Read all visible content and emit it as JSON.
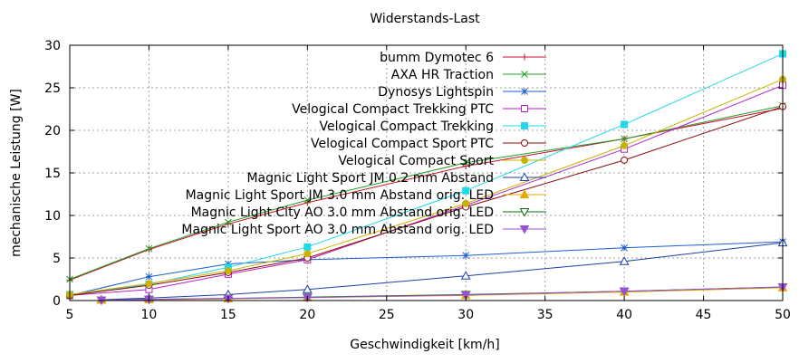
{
  "chart_data": {
    "type": "line",
    "title": "Widerstands-Last",
    "xlabel": "Geschwindigkeit [km/h]",
    "ylabel": "mechanische Leistung [W]",
    "xlim": [
      5,
      50
    ],
    "ylim": [
      0,
      30
    ],
    "xticks": [
      5,
      10,
      15,
      20,
      25,
      30,
      35,
      40,
      45,
      50
    ],
    "yticks": [
      0,
      5,
      10,
      15,
      20,
      25,
      30
    ],
    "grid": true,
    "legend_position": "top-right",
    "series": [
      {
        "name": "bumm Dymotec 6",
        "color": "#c8102e",
        "marker": "plus",
        "x": [
          5,
          10,
          15,
          20,
          30,
          40,
          50
        ],
        "y": [
          2.4,
          6.0,
          9.0,
          11.5,
          15.8,
          19.0,
          22.6
        ]
      },
      {
        "name": "AXA HR Traction",
        "color": "#21a021",
        "marker": "cross",
        "x": [
          5,
          10,
          15,
          20,
          30,
          40,
          50
        ],
        "y": [
          2.5,
          6.1,
          9.2,
          11.8,
          16.2,
          19.0,
          22.9
        ]
      },
      {
        "name": "Dynosys Lightspin",
        "color": "#1a5fd1",
        "marker": "star",
        "x": [
          5,
          10,
          15,
          20,
          30,
          40,
          50
        ],
        "y": [
          0.6,
          2.8,
          4.3,
          4.8,
          5.3,
          6.2,
          6.9
        ]
      },
      {
        "name": "Velogical Compact Trekking PTC",
        "color": "#b422c7",
        "marker": "square-open",
        "x": [
          5,
          10,
          15,
          20,
          30,
          40,
          50
        ],
        "y": [
          0.6,
          1.3,
          3.1,
          4.8,
          11.2,
          17.8,
          25.3
        ]
      },
      {
        "name": "Velogical Compact Trekking",
        "color": "#1fd9e8",
        "marker": "square-filled",
        "x": [
          5,
          10,
          15,
          20,
          30,
          40,
          50
        ],
        "y": [
          0.7,
          1.9,
          3.9,
          6.3,
          12.9,
          20.7,
          29.0
        ]
      },
      {
        "name": "Velogical Compact Sport PTC",
        "color": "#8b0a0a",
        "marker": "circle-open",
        "x": [
          5,
          10,
          15,
          20,
          30,
          40,
          50
        ],
        "y": [
          0.6,
          1.8,
          3.3,
          5.0,
          11.0,
          16.5,
          22.8
        ]
      },
      {
        "name": "Velogical Compact Sport",
        "color": "#c8b400",
        "marker": "circle-filled",
        "x": [
          5,
          10,
          15,
          20,
          30,
          40,
          50
        ],
        "y": [
          0.7,
          2.0,
          3.5,
          5.5,
          11.4,
          18.2,
          26.0
        ]
      },
      {
        "name": "Magnic Light Sport JM 0.2 mm Abstand",
        "color": "#1e3fa6",
        "marker": "triangle-up-open",
        "x": [
          7,
          10,
          15,
          20,
          30,
          40,
          50
        ],
        "y": [
          0.1,
          0.3,
          0.7,
          1.3,
          2.9,
          4.6,
          6.8
        ]
      },
      {
        "name": "Magnic Light Sport JM 3.0 mm Abstand orig. LED",
        "color": "#e8a800",
        "marker": "triangle-up-filled",
        "x": [
          7,
          10,
          15,
          20,
          30,
          40,
          50
        ],
        "y": [
          0.05,
          0.1,
          0.2,
          0.35,
          0.6,
          1.0,
          1.5
        ]
      },
      {
        "name": "Magnic Light City AO 3.0 mm Abstand orig. LED",
        "color": "#0a6b0a",
        "marker": "triangle-down-open",
        "x": [
          7,
          10,
          15,
          20,
          30,
          40,
          50
        ],
        "y": [
          0.05,
          0.15,
          0.25,
          0.4,
          0.7,
          1.1,
          1.6
        ]
      },
      {
        "name": "Magnic Light Sport AO 3.0 mm Abstand orig. LED",
        "color": "#9a4fd9",
        "marker": "triangle-down-filled",
        "x": [
          7,
          10,
          15,
          20,
          30,
          40,
          50
        ],
        "y": [
          0.05,
          0.15,
          0.25,
          0.35,
          0.65,
          1.1,
          1.6
        ]
      }
    ]
  }
}
